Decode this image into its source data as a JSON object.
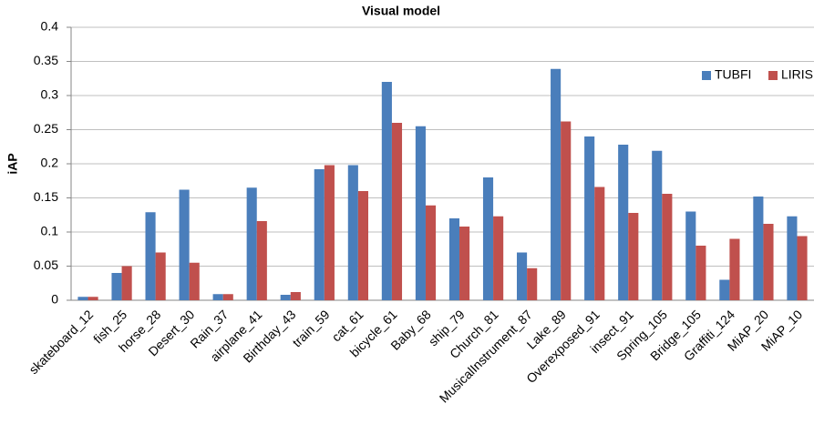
{
  "chart_data": {
    "type": "bar",
    "title": "Visual model",
    "y_label": "iAP",
    "categories": [
      "skateboard_12",
      "fish_25",
      "horse_28",
      "Desert_30",
      "Rain_37",
      "airplane_41",
      "Birthday_43",
      "train_59",
      "cat_61",
      "bicycle_61",
      "Baby_68",
      "ship_79",
      "Church_81",
      "MusicalInstrument_87",
      "Lake_89",
      "Overexposed_91",
      "insect_91",
      "Spring_105",
      "Bridge_105",
      "Graffiti_124",
      "MiAP_20",
      "MiAP_10"
    ],
    "series": [
      {
        "name": "TUBFI",
        "color": "#4a7ebb",
        "values": [
          0.005,
          0.04,
          0.129,
          0.162,
          0.009,
          0.165,
          0.008,
          0.192,
          0.198,
          0.32,
          0.255,
          0.12,
          0.18,
          0.07,
          0.339,
          0.24,
          0.228,
          0.219,
          0.13,
          0.03,
          0.152,
          0.123
        ]
      },
      {
        "name": "LIRIS",
        "color": "#c0504d",
        "values": [
          0.005,
          0.05,
          0.07,
          0.055,
          0.009,
          0.116,
          0.012,
          0.198,
          0.16,
          0.26,
          0.139,
          0.108,
          0.123,
          0.047,
          0.262,
          0.166,
          0.128,
          0.156,
          0.08,
          0.09,
          0.112,
          0.094
        ]
      }
    ],
    "ylim": [
      0,
      0.4
    ],
    "yticks": [
      0,
      0.05,
      0.1,
      0.15,
      0.2,
      0.25,
      0.3,
      0.35,
      0.4
    ],
    "grid": true,
    "legend": "right"
  }
}
